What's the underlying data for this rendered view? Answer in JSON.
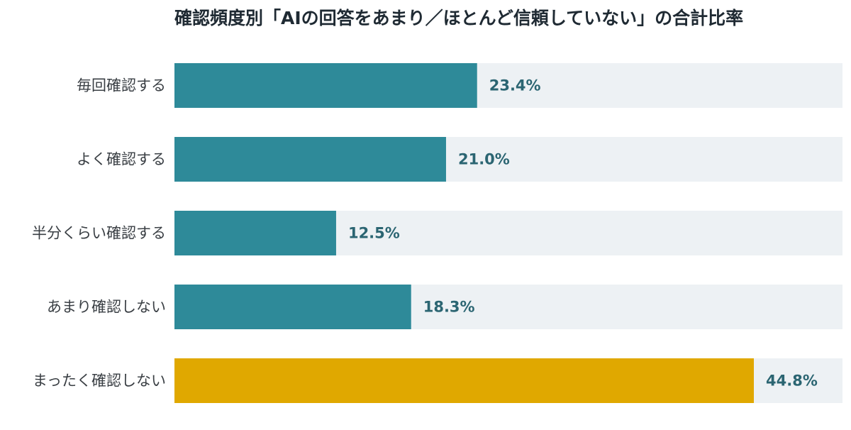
{
  "chart_data": {
    "type": "bar",
    "orientation": "horizontal",
    "title": "確認頻度別「AIの回答をあまり／ほとんど信頼していない」の合計比率",
    "xlabel": "",
    "ylabel": "",
    "xlim": [
      0,
      50
    ],
    "grid": false,
    "legend": "none",
    "value_suffix": "%",
    "categories": [
      "毎回確認する",
      "よく確認する",
      "半分くらい確認する",
      "あまり確認しない",
      "まったく確認しない"
    ],
    "values": [
      23.4,
      21.0,
      12.5,
      18.3,
      44.8
    ],
    "value_labels": [
      "23.4%",
      "21.0%",
      "12.5%",
      "18.3%",
      "44.8%"
    ],
    "colors": {
      "default_bar": "#2e8a99",
      "highlight_bar": "#e0a800",
      "track": "#edf1f4",
      "category_text": "#3a3f44",
      "value_text": "#2b6572"
    },
    "highlight_index": 4
  }
}
